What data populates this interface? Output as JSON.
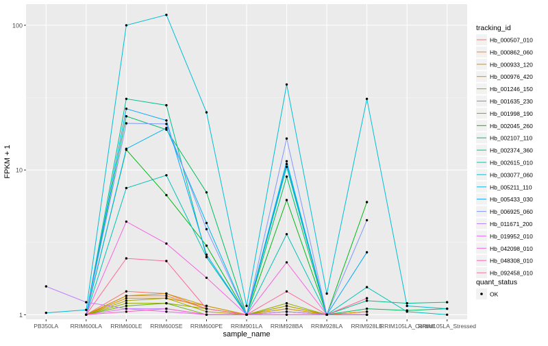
{
  "chart_data": {
    "type": "line",
    "xlabel": "sample_name",
    "ylabel": "FPKM + 1",
    "y_scale": "log10",
    "ylim": [
      0.93,
      140
    ],
    "y_ticks": [
      1,
      10,
      100
    ],
    "y_tick_labels": [
      "1",
      "10",
      "100"
    ],
    "categories": [
      "PB350LA",
      "RRIM600LA",
      "RRIM600LE",
      "RRIM600SE",
      "RRIM600PE",
      "RRIM901LA",
      "RRIM928BA",
      "RRIM928LA",
      "RRIM928LE",
      "RRIM105LA_Control",
      "RRIM105LA_Stressed"
    ],
    "panel_background": "#EBEBEB",
    "grid": true,
    "legend": {
      "title": "tracking_id",
      "position": "right",
      "shape_title": "quant_status",
      "shape_entries": [
        "OK"
      ]
    },
    "series": [
      {
        "name": "Hb_000507_010",
        "color": "#F8766D",
        "values": [
          null,
          1.0,
          1.45,
          1.4,
          1.1,
          1.0,
          1.05,
          1.0,
          1.05,
          null,
          null
        ]
      },
      {
        "name": "Hb_000862_060",
        "color": "#EC8239",
        "values": [
          null,
          1.0,
          1.35,
          1.35,
          1.1,
          1.0,
          1.1,
          1.0,
          1.05,
          null,
          null
        ]
      },
      {
        "name": "Hb_000933_120",
        "color": "#DB8E00",
        "values": [
          null,
          1.0,
          1.3,
          1.3,
          1.15,
          1.0,
          1.15,
          1.0,
          1.05,
          null,
          null
        ]
      },
      {
        "name": "Hb_000976_420",
        "color": "#C79800",
        "values": [
          null,
          1.0,
          1.35,
          1.4,
          1.15,
          1.0,
          1.1,
          1.0,
          1.0,
          null,
          null
        ]
      },
      {
        "name": "Hb_001246_150",
        "color": "#AEA200",
        "values": [
          null,
          1.0,
          1.25,
          1.3,
          1.05,
          1.0,
          1.15,
          1.0,
          1.0,
          null,
          null
        ]
      },
      {
        "name": "Hb_001635_230",
        "color": "#8FAA00",
        "values": [
          null,
          1.0,
          1.2,
          1.2,
          1.1,
          1.0,
          1.2,
          1.0,
          1.0,
          null,
          null
        ]
      },
      {
        "name": "Hb_001998_190",
        "color": "#64B200",
        "values": [
          null,
          1.0,
          1.15,
          1.2,
          1.0,
          1.0,
          1.05,
          1.0,
          1.0,
          null,
          null
        ]
      },
      {
        "name": "Hb_002045_260",
        "color": "#00B813",
        "values": [
          null,
          1.0,
          13.8,
          6.7,
          3.0,
          1.0,
          6.2,
          1.0,
          6.0,
          null,
          null
        ]
      },
      {
        "name": "Hb_002107_110",
        "color": "#00BD5C",
        "values": [
          null,
          1.0,
          23.5,
          19.0,
          7.0,
          1.0,
          9.0,
          1.0,
          1.1,
          1.07,
          1.1
        ]
      },
      {
        "name": "Hb_002374_360",
        "color": "#00C08E",
        "values": [
          null,
          1.0,
          31.0,
          28.0,
          2.5,
          1.0,
          10.5,
          1.0,
          1.25,
          1.2,
          1.22
        ]
      },
      {
        "name": "Hb_002615_010",
        "color": "#00C1B7",
        "values": [
          null,
          1.0,
          7.5,
          9.2,
          2.5,
          1.0,
          3.6,
          1.0,
          1.55,
          1.05,
          1.0
        ]
      },
      {
        "name": "Hb_003077_060",
        "color": "#00BDD4",
        "values": [
          1.03,
          1.08,
          100.0,
          118.0,
          25.0,
          1.15,
          39.0,
          1.4,
          31.0,
          1.15,
          1.1
        ]
      },
      {
        "name": "Hb_005211_110",
        "color": "#00B5EE",
        "values": [
          null,
          1.0,
          14.0,
          19.5,
          4.3,
          1.0,
          11.5,
          1.0,
          1.0,
          null,
          null
        ]
      },
      {
        "name": "Hb_005433_030",
        "color": "#00A7FF",
        "values": [
          null,
          1.0,
          26.5,
          22.0,
          2.6,
          1.0,
          11.0,
          1.0,
          2.7,
          null,
          null
        ]
      },
      {
        "name": "Hb_006925_060",
        "color": "#7F96FF",
        "values": [
          null,
          1.0,
          21.0,
          20.8,
          3.9,
          1.0,
          16.5,
          1.0,
          4.5,
          null,
          null
        ]
      },
      {
        "name": "Hb_011671_200",
        "color": "#BC81FF",
        "values": [
          1.57,
          1.22,
          1.1,
          1.1,
          1.0,
          1.0,
          1.05,
          1.0,
          1.0,
          null,
          null
        ]
      },
      {
        "name": "Hb_019952_010",
        "color": "#E26EF7",
        "values": [
          null,
          1.0,
          1.1,
          1.05,
          1.0,
          1.0,
          1.0,
          1.0,
          1.0,
          null,
          null
        ]
      },
      {
        "name": "Hb_042098_010",
        "color": "#F863DF",
        "values": [
          null,
          1.0,
          4.4,
          3.1,
          1.8,
          1.0,
          2.3,
          1.0,
          1.3,
          null,
          null
        ]
      },
      {
        "name": "Hb_048308_010",
        "color": "#FF62BF",
        "values": [
          null,
          1.0,
          1.05,
          1.1,
          1.0,
          1.0,
          1.0,
          1.0,
          1.0,
          null,
          null
        ]
      },
      {
        "name": "Hb_092458_010",
        "color": "#FF6A98",
        "values": [
          null,
          1.0,
          2.45,
          2.35,
          1.1,
          1.0,
          1.45,
          1.0,
          1.3,
          null,
          null
        ]
      }
    ]
  }
}
